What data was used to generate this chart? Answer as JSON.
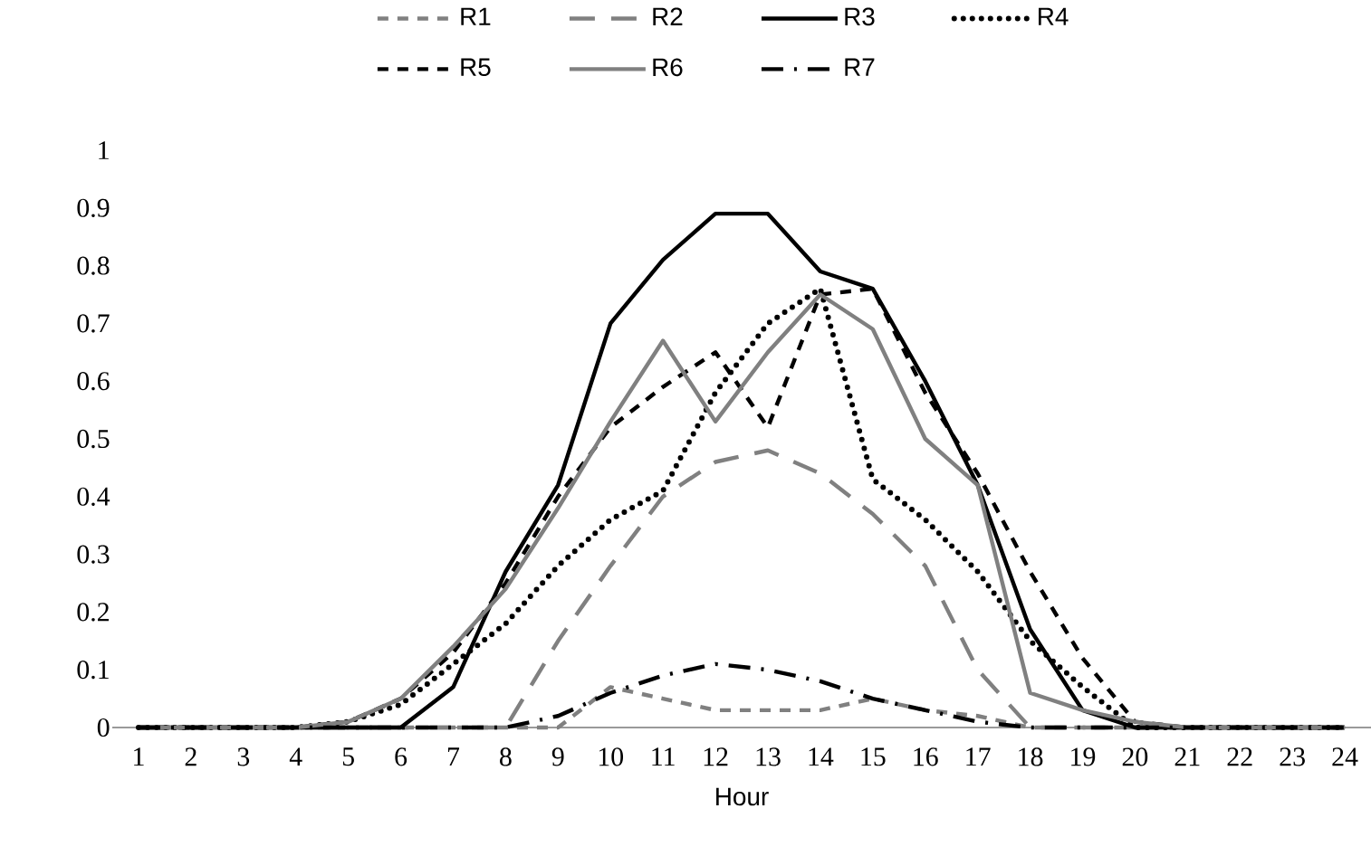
{
  "chart_data": {
    "type": "line",
    "xlabel": "Hour",
    "categories": [
      "1",
      "2",
      "3",
      "4",
      "5",
      "6",
      "7",
      "8",
      "9",
      "10",
      "11",
      "12",
      "13",
      "14",
      "15",
      "16",
      "17",
      "18",
      "19",
      "20",
      "21",
      "22",
      "23",
      "24"
    ],
    "ylim": [
      0,
      1
    ],
    "yticks": [
      0,
      0.1,
      0.2,
      0.3,
      0.4,
      0.5,
      0.6,
      0.7,
      0.8,
      0.9,
      1
    ],
    "grid": false,
    "legend": "top",
    "series": [
      {
        "name": "R1",
        "color": "#808080",
        "line_style": "dashed",
        "values": [
          0,
          0,
          0,
          0,
          0,
          0,
          0,
          0,
          0,
          0.07,
          0.05,
          0.03,
          0.03,
          0.03,
          0.05,
          0.03,
          0.02,
          0,
          0,
          0,
          0,
          0,
          0,
          0
        ]
      },
      {
        "name": "R2",
        "color": "#808080",
        "line_style": "long dashed",
        "values": [
          0,
          0,
          0,
          0,
          0,
          0,
          0,
          0,
          0.15,
          0.28,
          0.4,
          0.46,
          0.48,
          0.44,
          0.37,
          0.28,
          0.1,
          0,
          0,
          0,
          0,
          0,
          0,
          0
        ]
      },
      {
        "name": "R3",
        "color": "#000000",
        "line_style": "solid",
        "values": [
          0,
          0,
          0,
          0,
          0,
          0,
          0.07,
          0.27,
          0.42,
          0.7,
          0.81,
          0.89,
          0.89,
          0.79,
          0.76,
          0.6,
          0.42,
          0.17,
          0.03,
          0,
          0,
          0,
          0,
          0
        ]
      },
      {
        "name": "R4",
        "color": "#000000",
        "line_style": "dotted",
        "values": [
          0,
          0,
          0,
          0,
          0.01,
          0.04,
          0.11,
          0.18,
          0.28,
          0.36,
          0.41,
          0.58,
          0.7,
          0.76,
          0.43,
          0.36,
          0.27,
          0.15,
          0.07,
          0,
          0,
          0,
          0,
          0
        ]
      },
      {
        "name": "R5",
        "color": "#000000",
        "line_style": "dashed",
        "values": [
          0,
          0,
          0,
          0,
          0.01,
          0.05,
          0.13,
          0.25,
          0.4,
          0.52,
          0.59,
          0.65,
          0.52,
          0.75,
          0.76,
          0.58,
          0.44,
          0.27,
          0.12,
          0.01,
          0,
          0,
          0,
          0
        ]
      },
      {
        "name": "R6",
        "color": "#808080",
        "line_style": "solid",
        "values": [
          0,
          0,
          0,
          0,
          0.01,
          0.05,
          0.14,
          0.24,
          0.38,
          0.53,
          0.67,
          0.53,
          0.65,
          0.75,
          0.69,
          0.5,
          0.42,
          0.06,
          0.03,
          0.01,
          0,
          0,
          0,
          0
        ]
      },
      {
        "name": "R7",
        "color": "#000000",
        "line_style": "dashdot",
        "values": [
          0,
          0,
          0,
          0,
          0,
          0,
          0,
          0,
          0.02,
          0.06,
          0.09,
          0.11,
          0.1,
          0.08,
          0.05,
          0.03,
          0.01,
          0,
          0,
          0,
          0,
          0,
          0,
          0
        ]
      }
    ]
  }
}
